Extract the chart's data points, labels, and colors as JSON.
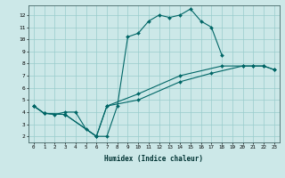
{
  "xlabel": "Humidex (Indice chaleur)",
  "bg_color": "#cce8e8",
  "line_color": "#006666",
  "xlim": [
    -0.5,
    23.5
  ],
  "ylim": [
    1.5,
    12.8
  ],
  "xticks": [
    0,
    1,
    2,
    3,
    4,
    5,
    6,
    7,
    8,
    9,
    10,
    11,
    12,
    13,
    14,
    15,
    16,
    17,
    18,
    19,
    20,
    21,
    22,
    23
  ],
  "yticks": [
    2,
    3,
    4,
    5,
    6,
    7,
    8,
    9,
    10,
    11,
    12
  ],
  "s1x": [
    0,
    1,
    2,
    3,
    4,
    5,
    6,
    7,
    8,
    9,
    10,
    11,
    12,
    13,
    14,
    15,
    16,
    17,
    18
  ],
  "s1y": [
    4.5,
    3.9,
    3.8,
    4.0,
    4.0,
    2.6,
    2.0,
    2.0,
    4.5,
    10.2,
    10.5,
    11.5,
    12.0,
    11.8,
    12.0,
    12.5,
    11.5,
    11.0,
    8.7
  ],
  "s2x": [
    0,
    1,
    3,
    6,
    7,
    10,
    14,
    17,
    20,
    21,
    22,
    23
  ],
  "s2y": [
    4.5,
    3.9,
    3.8,
    2.0,
    4.5,
    5.0,
    6.5,
    7.2,
    7.8,
    7.8,
    7.8,
    7.5
  ],
  "s3x": [
    0,
    1,
    3,
    6,
    7,
    10,
    14,
    18,
    20,
    21,
    22,
    23
  ],
  "s3y": [
    4.5,
    3.9,
    3.8,
    2.0,
    4.5,
    5.5,
    7.0,
    7.8,
    7.8,
    7.8,
    7.8,
    7.5
  ]
}
